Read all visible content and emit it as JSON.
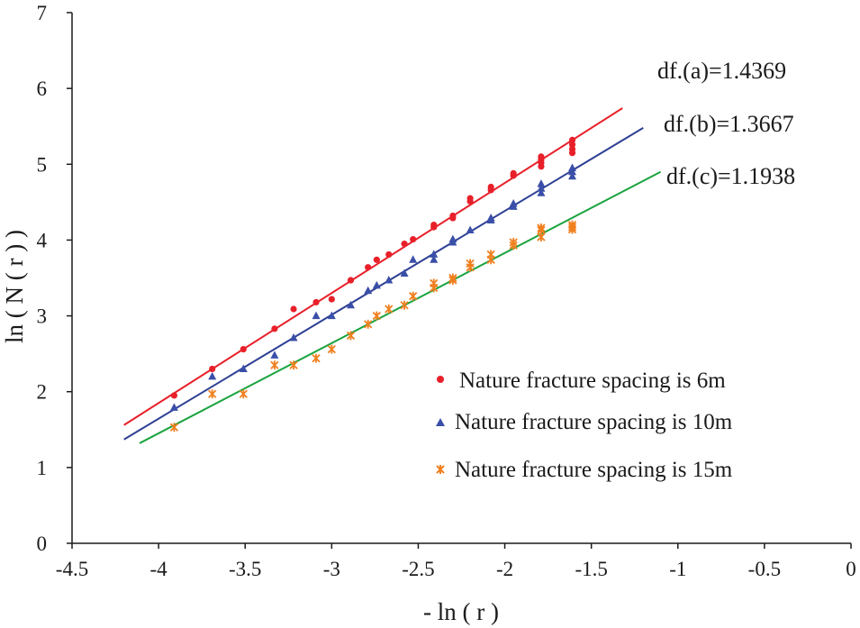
{
  "chart_data": {
    "type": "scatter",
    "title": "",
    "xlabel": "- ln ( r )",
    "ylabel": "ln ( N ( r ) )",
    "xlim": [
      -4.5,
      0
    ],
    "ylim": [
      0,
      7
    ],
    "xticks": [
      -4.5,
      -4,
      -3.5,
      -3,
      -2.5,
      -2,
      -1.5,
      -1,
      -0.5,
      0
    ],
    "yticks": [
      0,
      1,
      2,
      3,
      4,
      5,
      6,
      7
    ],
    "xtick_labels": [
      "-4.5",
      "-4",
      "-3.5",
      "-3",
      "-2.5",
      "-2",
      "-1.5",
      "-1",
      "-0.5",
      "0"
    ],
    "ytick_labels": [
      "0",
      "1",
      "2",
      "3",
      "4",
      "5",
      "6",
      "7"
    ],
    "grid": false,
    "legend_position": "bottom-right",
    "series": [
      {
        "name": "Nature fracture spacing is 6m",
        "marker": "circle",
        "color": "#e8202a",
        "line_color": "#e8202a",
        "fit": {
          "slope": 1.4369,
          "x_start": -4.2,
          "y_start": 1.56,
          "x_end": -1.32,
          "y_end": 5.74
        },
        "x": [
          -3.91,
          -3.69,
          -3.51,
          -3.33,
          -3.22,
          -3.09,
          -3.0,
          -2.89,
          -2.79,
          -2.74,
          -2.67,
          -2.58,
          -2.53,
          -2.41,
          -2.41,
          -2.3,
          -2.3,
          -2.2,
          -2.2,
          -2.08,
          -2.08,
          -1.95,
          -1.95,
          -1.79,
          -1.79,
          -1.79,
          -1.79,
          -1.61,
          -1.61,
          -1.61,
          -1.61
        ],
        "y": [
          1.95,
          2.3,
          2.56,
          2.83,
          3.09,
          3.18,
          3.22,
          3.47,
          3.64,
          3.74,
          3.81,
          3.95,
          4.01,
          4.17,
          4.2,
          4.29,
          4.32,
          4.51,
          4.55,
          4.66,
          4.7,
          4.85,
          4.88,
          4.97,
          5.02,
          5.06,
          5.1,
          5.15,
          5.2,
          5.26,
          5.32
        ]
      },
      {
        "name": "Nature fracture spacing is 10m",
        "marker": "triangle",
        "color": "#3a4fa8",
        "line_color": "#2e3f94",
        "fit": {
          "slope": 1.3667,
          "x_start": -4.2,
          "y_start": 1.37,
          "x_end": -1.2,
          "y_end": 5.48
        },
        "x": [
          -3.91,
          -3.69,
          -3.51,
          -3.33,
          -3.22,
          -3.09,
          -3.0,
          -2.89,
          -2.79,
          -2.74,
          -2.67,
          -2.58,
          -2.53,
          -2.41,
          -2.41,
          -2.3,
          -2.3,
          -2.2,
          -2.08,
          -2.08,
          -1.95,
          -1.95,
          -1.79,
          -1.79,
          -1.79,
          -1.61,
          -1.61,
          -1.61
        ],
        "y": [
          1.79,
          2.2,
          2.3,
          2.48,
          2.71,
          3.0,
          3.0,
          3.14,
          3.33,
          3.4,
          3.47,
          3.56,
          3.74,
          3.74,
          3.81,
          3.97,
          4.01,
          4.13,
          4.26,
          4.29,
          4.44,
          4.48,
          4.62,
          4.68,
          4.74,
          4.84,
          4.9,
          4.95
        ]
      },
      {
        "name": "Nature fracture spacing is 15m",
        "marker": "asterisk",
        "color": "#f07f1e",
        "line_color": "#1aa33f",
        "fit": {
          "slope": 1.1938,
          "x_start": -4.11,
          "y_start": 1.32,
          "x_end": -1.1,
          "y_end": 4.9
        },
        "x": [
          -3.91,
          -3.69,
          -3.51,
          -3.33,
          -3.22,
          -3.09,
          -3.0,
          -2.89,
          -2.79,
          -2.74,
          -2.67,
          -2.58,
          -2.53,
          -2.41,
          -2.41,
          -2.3,
          -2.3,
          -2.2,
          -2.2,
          -2.08,
          -2.08,
          -1.95,
          -1.95,
          -1.79,
          -1.79,
          -1.79,
          -1.61,
          -1.61,
          -1.61
        ],
        "y": [
          1.53,
          1.97,
          1.97,
          2.35,
          2.35,
          2.44,
          2.56,
          2.74,
          2.89,
          3.0,
          3.09,
          3.14,
          3.26,
          3.37,
          3.43,
          3.47,
          3.5,
          3.64,
          3.69,
          3.74,
          3.81,
          3.93,
          3.97,
          4.04,
          4.13,
          4.16,
          4.14,
          4.17,
          4.2
        ]
      }
    ],
    "annotations": [
      {
        "text": "df.(a)=1.4369"
      },
      {
        "text": "df.(b)=1.3667"
      },
      {
        "text": "df.(c)=1.1938"
      }
    ]
  }
}
